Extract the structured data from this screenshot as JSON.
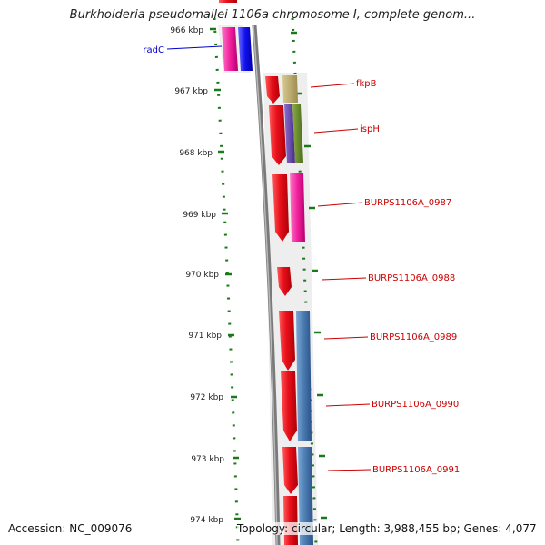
{
  "title": "Burkholderia pseudomallei 1106a chromosome I, complete genom...",
  "footer": {
    "accession": "Accession: NC_009076",
    "topology": "Topology: circular; Length: 3,988,455 bp; Genes: 4,077"
  },
  "colors": {
    "backbone": "#7a7a7a",
    "tick": "#1a7a1a",
    "gene_red": "#e8101a",
    "gene_magenta": "#f0209c",
    "gene_blue": "#1010f0",
    "gene_khaki": "#b8a868",
    "gene_olive": "#6a8a2a",
    "gene_purple": "#6a4aa8",
    "gene_steel": "#4a7ab0",
    "label_red": "#cc0000",
    "label_blue": "#0000cc"
  },
  "scale_labels": [
    "966 kbp",
    "967 kbp",
    "968 kbp",
    "969 kbp",
    "970 kbp",
    "971 kbp",
    "972 kbp",
    "973 kbp",
    "974 kbp"
  ],
  "gene_labels": [
    {
      "text": "radC",
      "color": "blue"
    },
    {
      "text": "fkpB",
      "color": "red"
    },
    {
      "text": "ispH",
      "color": "red"
    },
    {
      "text": "BURPS1106A_0987",
      "color": "red"
    },
    {
      "text": "BURPS1106A_0988",
      "color": "red"
    },
    {
      "text": "BURPS1106A_0989",
      "color": "red"
    },
    {
      "text": "BURPS1106A_0990",
      "color": "red"
    },
    {
      "text": "BURPS1106A_0991",
      "color": "red"
    }
  ]
}
